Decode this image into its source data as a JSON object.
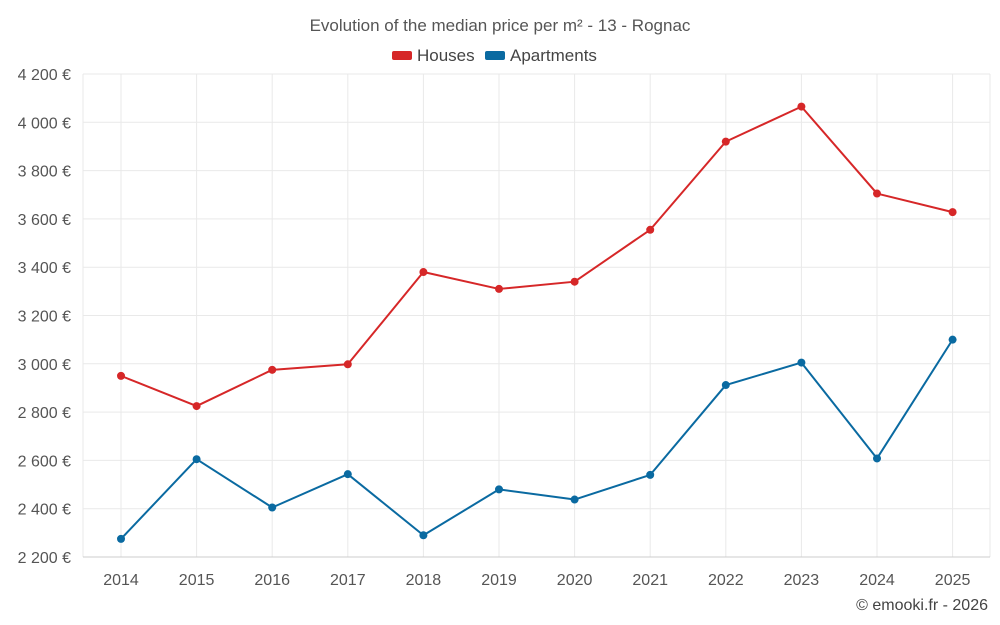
{
  "chart_data": {
    "type": "line",
    "title": "Evolution of the median price per m² - 13 - Rognac",
    "xlabel": "",
    "ylabel": "",
    "categories": [
      "2014",
      "2015",
      "2016",
      "2017",
      "2018",
      "2019",
      "2020",
      "2021",
      "2022",
      "2023",
      "2024",
      "2025"
    ],
    "ylim": [
      2200,
      4200
    ],
    "yticks": [
      2200,
      2400,
      2600,
      2800,
      3000,
      3200,
      3400,
      3600,
      3800,
      4000,
      4200
    ],
    "ytick_labels": [
      "2 200 €",
      "2 400 €",
      "2 600 €",
      "2 800 €",
      "3 000 €",
      "3 200 €",
      "3 400 €",
      "3 600 €",
      "3 800 €",
      "4 000 €",
      "4 200 €"
    ],
    "grid": true,
    "legend_position": "top-center",
    "series": [
      {
        "name": "Houses",
        "color": "#d62728",
        "values": [
          2950,
          2825,
          2975,
          2998,
          3380,
          3310,
          3340,
          3555,
          3920,
          4065,
          3705,
          3628
        ]
      },
      {
        "name": "Apartments",
        "color": "#0a6aa1",
        "values": [
          2275,
          2605,
          2405,
          2543,
          2290,
          2480,
          2438,
          2540,
          2912,
          3005,
          2608,
          3100
        ]
      }
    ]
  },
  "credit": "© emooki.fr - 2026"
}
